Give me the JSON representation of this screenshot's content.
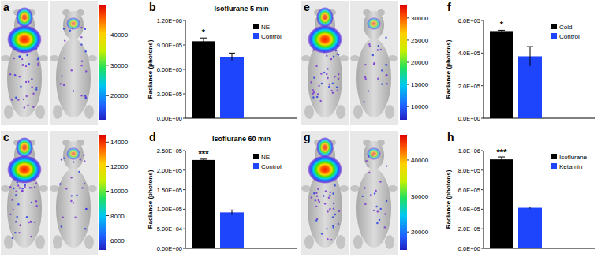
{
  "chart_data": [
    {
      "type": "image",
      "panel_label": "a",
      "colorbar": {
        "range": [
          12000,
          50000
        ],
        "ticks": [
          20000,
          30000,
          40000
        ]
      }
    },
    {
      "type": "bar",
      "panel_label": "b",
      "title": "Isoflurane 5 min",
      "y_label": "Radiance (photons)",
      "categories": [
        null
      ],
      "series": [
        {
          "name": "NE",
          "color": "#000000",
          "values": [
            945000
          ],
          "errors": [
            40000
          ]
        },
        {
          "name": "Control",
          "color": "#1f45fc",
          "values": [
            755000
          ],
          "errors": [
            45000
          ]
        }
      ],
      "ylim": [
        0,
        1200000
      ],
      "yticks": [
        {
          "value": 0,
          "label": "0.00E+00"
        },
        {
          "value": 300000,
          "label": "3.00E+05"
        },
        {
          "value": 600000,
          "label": "6.00E+05"
        },
        {
          "value": 900000,
          "label": "9.00E+05"
        },
        {
          "value": 1200000,
          "label": "1.20E+06"
        }
      ],
      "legend": "upper right",
      "annotation": "*"
    },
    {
      "type": "image",
      "panel_label": "c",
      "colorbar": {
        "range": [
          5200,
          14600
        ],
        "ticks": [
          6000,
          8000,
          10000,
          12000,
          14000
        ]
      }
    },
    {
      "type": "bar",
      "panel_label": "d",
      "title": "Isoflurane 60 min",
      "y_label": "Radiance (photons)",
      "categories": [
        null
      ],
      "series": [
        {
          "name": "NE",
          "color": "#000000",
          "values": [
            226000
          ],
          "errors": [
            2000
          ]
        },
        {
          "name": "Control",
          "color": "#1f45fc",
          "values": [
            92000
          ],
          "errors": [
            6000
          ]
        }
      ],
      "ylim": [
        0,
        250000
      ],
      "yticks": [
        {
          "value": 0,
          "label": "0.00E+00"
        },
        {
          "value": 50000,
          "label": "5.00E+04"
        },
        {
          "value": 100000,
          "label": "1.00E+05"
        },
        {
          "value": 150000,
          "label": "1.50E+05"
        },
        {
          "value": 200000,
          "label": "2.00E+05"
        },
        {
          "value": 250000,
          "label": "2.50E+05"
        }
      ],
      "legend": "upper right",
      "annotation": "***"
    },
    {
      "type": "image",
      "panel_label": "e",
      "colorbar": {
        "range": [
          7000,
          33000
        ],
        "ticks": [
          10000,
          15000,
          20000,
          25000,
          30000
        ]
      }
    },
    {
      "type": "bar",
      "panel_label": "f",
      "y_label": "Radiance (photons)",
      "categories": [
        null
      ],
      "series": [
        {
          "name": "Cold",
          "color": "#000000",
          "values": [
            535000
          ],
          "errors": [
            5000
          ]
        },
        {
          "name": "Control",
          "color": "#1f45fc",
          "values": [
            380000
          ],
          "errors": [
            60000
          ]
        }
      ],
      "ylim": [
        0,
        600000
      ],
      "yticks": [
        {
          "value": 0,
          "label": "0.0E+00"
        },
        {
          "value": 200000,
          "label": "2.0E+05"
        },
        {
          "value": 400000,
          "label": "4.0E+05"
        },
        {
          "value": 600000,
          "label": "6.0E+05"
        }
      ],
      "legend": "upper right",
      "annotation": "*"
    },
    {
      "type": "image",
      "panel_label": "g",
      "colorbar": {
        "range": [
          15000,
          47000
        ],
        "ticks": [
          20000,
          30000,
          40000
        ]
      }
    },
    {
      "type": "bar",
      "panel_label": "h",
      "y_label": "Radiance (photons)",
      "categories": [
        null
      ],
      "series": [
        {
          "name": "Isoflurane",
          "color": "#000000",
          "values": [
            910000
          ],
          "errors": [
            25000
          ]
        },
        {
          "name": "Ketamin",
          "color": "#1f45fc",
          "values": [
            415000
          ],
          "errors": [
            8000
          ]
        }
      ],
      "ylim": [
        0,
        1000000
      ],
      "yticks": [
        {
          "value": 0,
          "label": "0.0E+00"
        },
        {
          "value": 200000,
          "label": "2.0E+05"
        },
        {
          "value": 400000,
          "label": "4.0E+05"
        },
        {
          "value": 600000,
          "label": "6.0E+05"
        },
        {
          "value": 800000,
          "label": "8.0E+05"
        },
        {
          "value": 1000000,
          "label": "1.0E+06"
        }
      ],
      "legend": "upper right",
      "annotation": "***"
    }
  ]
}
